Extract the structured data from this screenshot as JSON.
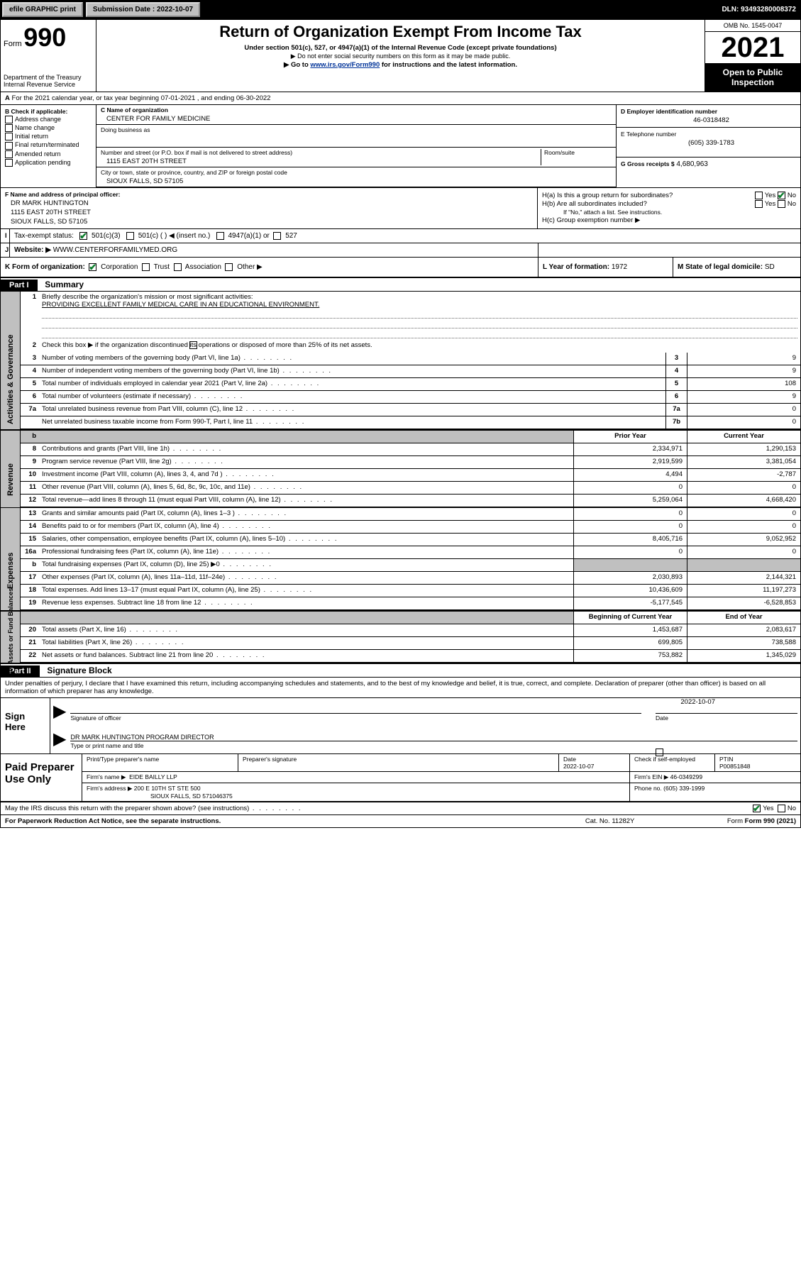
{
  "topbar": {
    "efile": "efile GRAPHIC print",
    "sub_date_lbl": "Submission Date :",
    "sub_date": "2022-10-07",
    "dln_lbl": "DLN:",
    "dln": "93493280008372"
  },
  "header": {
    "form_word": "Form",
    "form_num": "990",
    "dept": "Department of the Treasury",
    "irs": "Internal Revenue Service",
    "title": "Return of Organization Exempt From Income Tax",
    "sub1": "Under section 501(c), 527, or 4947(a)(1) of the Internal Revenue Code (except private foundations)",
    "sub2": "▶ Do not enter social security numbers on this form as it may be made public.",
    "sub3_pre": "▶ Go to ",
    "sub3_link": "www.irs.gov/Form990",
    "sub3_post": " for instructions and the latest information.",
    "omb": "OMB No. 1545-0047",
    "year": "2021",
    "open": "Open to Public Inspection"
  },
  "lineA": {
    "text": "For the 2021 calendar year, or tax year beginning 07-01-2021   , and ending 06-30-2022",
    "lbl": "A"
  },
  "colB": {
    "hdr": "B Check if applicable:",
    "items": [
      "Address change",
      "Name change",
      "Initial return",
      "Final return/terminated",
      "Amended return",
      "Application pending"
    ]
  },
  "colC": {
    "name_lbl": "C Name of organization",
    "name": "CENTER FOR FAMILY MEDICINE",
    "dba_lbl": "Doing business as",
    "addr_lbl": "Number and street (or P.O. box if mail is not delivered to street address)",
    "addr": "1115 EAST 20TH STREET",
    "room_lbl": "Room/suite",
    "city_lbl": "City or town, state or province, country, and ZIP or foreign postal code",
    "city": "SIOUX FALLS, SD  57105"
  },
  "colD": {
    "ein_lbl": "D Employer identification number",
    "ein": "46-0318482",
    "tel_lbl": "E Telephone number",
    "tel": "(605) 339-1783",
    "gross_lbl": "G Gross receipts $",
    "gross": "4,680,963"
  },
  "rowF": {
    "lbl": "F Name and address of principal officer:",
    "l1": "DR MARK HUNTINGTON",
    "l2": "1115 EAST 20TH STREET",
    "l3": "SIOUX FALLS, SD  57105"
  },
  "colH": {
    "ha": "H(a)  Is this a group return for subordinates?",
    "hb": "H(b)  Are all subordinates included?",
    "hb_note": "If \"No,\" attach a list. See instructions.",
    "hc": "H(c)  Group exemption number ▶",
    "yes": "Yes",
    "no": "No"
  },
  "rowI": {
    "lbl": "Tax-exempt status:",
    "o1": "501(c)(3)",
    "o2": "501(c) (  ) ◀ (insert no.)",
    "o3": "4947(a)(1) or",
    "o4": "527"
  },
  "rowJ": {
    "lbl": "Website: ▶",
    "val": "WWW.CENTERFORFAMILYMED.ORG"
  },
  "rowK": {
    "lbl": "K Form of organization:",
    "o1": "Corporation",
    "o2": "Trust",
    "o3": "Association",
    "o4": "Other ▶",
    "L_lbl": "L Year of formation:",
    "L_val": "1972",
    "M_lbl": "M State of legal domicile:",
    "M_val": "SD"
  },
  "part1": {
    "hdr": "Part I",
    "title": "Summary",
    "vtab_gov": "Activities & Governance",
    "vtab_rev": "Revenue",
    "vtab_exp": "Expenses",
    "vtab_net": "Net Assets or Fund Balances",
    "q1": "Briefly describe the organization's mission or most significant activities:",
    "q1_ans": "PROVIDING EXCELLENT FAMILY MEDICAL CARE IN AN EDUCATIONAL ENVIRONMENT.",
    "q2": "Check this box ▶       if the organization discontinued its operations or disposed of more than 25% of its net assets.",
    "rows_gov": [
      {
        "n": "3",
        "d": "Number of voting members of the governing body (Part VI, line 1a)",
        "b": "3",
        "v": "9"
      },
      {
        "n": "4",
        "d": "Number of independent voting members of the governing body (Part VI, line 1b)",
        "b": "4",
        "v": "9"
      },
      {
        "n": "5",
        "d": "Total number of individuals employed in calendar year 2021 (Part V, line 2a)",
        "b": "5",
        "v": "108"
      },
      {
        "n": "6",
        "d": "Total number of volunteers (estimate if necessary)",
        "b": "6",
        "v": "9"
      },
      {
        "n": "7a",
        "d": "Total unrelated business revenue from Part VIII, column (C), line 12",
        "b": "7a",
        "v": "0"
      },
      {
        "n": "",
        "d": "Net unrelated business taxable income from Form 990-T, Part I, line 11",
        "b": "7b",
        "v": "0"
      }
    ],
    "col_prior": "Prior Year",
    "col_curr": "Current Year",
    "rows_rev": [
      {
        "n": "8",
        "d": "Contributions and grants (Part VIII, line 1h)",
        "p": "2,334,971",
        "c": "1,290,153"
      },
      {
        "n": "9",
        "d": "Program service revenue (Part VIII, line 2g)",
        "p": "2,919,599",
        "c": "3,381,054"
      },
      {
        "n": "10",
        "d": "Investment income (Part VIII, column (A), lines 3, 4, and 7d )",
        "p": "4,494",
        "c": "-2,787"
      },
      {
        "n": "11",
        "d": "Other revenue (Part VIII, column (A), lines 5, 6d, 8c, 9c, 10c, and 11e)",
        "p": "0",
        "c": "0"
      },
      {
        "n": "12",
        "d": "Total revenue—add lines 8 through 11 (must equal Part VIII, column (A), line 12)",
        "p": "5,259,064",
        "c": "4,668,420"
      }
    ],
    "rows_exp": [
      {
        "n": "13",
        "d": "Grants and similar amounts paid (Part IX, column (A), lines 1–3 )",
        "p": "0",
        "c": "0"
      },
      {
        "n": "14",
        "d": "Benefits paid to or for members (Part IX, column (A), line 4)",
        "p": "0",
        "c": "0"
      },
      {
        "n": "15",
        "d": "Salaries, other compensation, employee benefits (Part IX, column (A), lines 5–10)",
        "p": "8,405,716",
        "c": "9,052,952"
      },
      {
        "n": "16a",
        "d": "Professional fundraising fees (Part IX, column (A), line 11e)",
        "p": "0",
        "c": "0"
      },
      {
        "n": "b",
        "d": "Total fundraising expenses (Part IX, column (D), line 25) ▶0",
        "p": "",
        "c": "",
        "gray": true
      },
      {
        "n": "17",
        "d": "Other expenses (Part IX, column (A), lines 11a–11d, 11f–24e)",
        "p": "2,030,893",
        "c": "2,144,321"
      },
      {
        "n": "18",
        "d": "Total expenses. Add lines 13–17 (must equal Part IX, column (A), line 25)",
        "p": "10,436,609",
        "c": "11,197,273"
      },
      {
        "n": "19",
        "d": "Revenue less expenses. Subtract line 18 from line 12",
        "p": "-5,177,545",
        "c": "-6,528,853"
      }
    ],
    "col_boy": "Beginning of Current Year",
    "col_eoy": "End of Year",
    "rows_net": [
      {
        "n": "20",
        "d": "Total assets (Part X, line 16)",
        "p": "1,453,687",
        "c": "2,083,617"
      },
      {
        "n": "21",
        "d": "Total liabilities (Part X, line 26)",
        "p": "699,805",
        "c": "738,588"
      },
      {
        "n": "22",
        "d": "Net assets or fund balances. Subtract line 21 from line 20",
        "p": "753,882",
        "c": "1,345,029"
      }
    ]
  },
  "part2": {
    "hdr": "Part II",
    "title": "Signature Block",
    "decl": "Under penalties of perjury, I declare that I have examined this return, including accompanying schedules and statements, and to the best of my knowledge and belief, it is true, correct, and complete. Declaration of preparer (other than officer) is based on all information of which preparer has any knowledge.",
    "sign_here": "Sign Here",
    "sig_lbl": "Signature of officer",
    "date_lbl": "Date",
    "sig_date": "2022-10-07",
    "name_title": "DR MARK HUNTINGTON  PROGRAM DIRECTOR",
    "name_lbl": "Type or print name and title",
    "paid": "Paid Preparer Use Only",
    "p_name_lbl": "Print/Type preparer's name",
    "p_sig_lbl": "Preparer's signature",
    "p_date_lbl": "Date",
    "p_date": "2022-10-07",
    "p_self": "Check        if self-employed",
    "ptin_lbl": "PTIN",
    "ptin": "P00851848",
    "firm_name_lbl": "Firm's name    ▶",
    "firm_name": "EIDE BAILLY LLP",
    "firm_ein_lbl": "Firm's EIN ▶",
    "firm_ein": "46-0349299",
    "firm_addr_lbl": "Firm's address ▶",
    "firm_addr1": "200 E 10TH ST STE 500",
    "firm_addr2": "SIOUX FALLS, SD  571046375",
    "firm_phone_lbl": "Phone no.",
    "firm_phone": "(605) 339-1999"
  },
  "footer": {
    "discuss": "May the IRS discuss this return with the preparer shown above? (see instructions)",
    "yes": "Yes",
    "no": "No",
    "paperwork": "For Paperwork Reduction Act Notice, see the separate instructions.",
    "cat": "Cat. No. 11282Y",
    "form": "Form 990 (2021)"
  },
  "colors": {
    "bg": "#ffffff",
    "border": "#000000",
    "gray": "#c0c0c0",
    "link": "#003399",
    "check": "#0a7d2b"
  }
}
